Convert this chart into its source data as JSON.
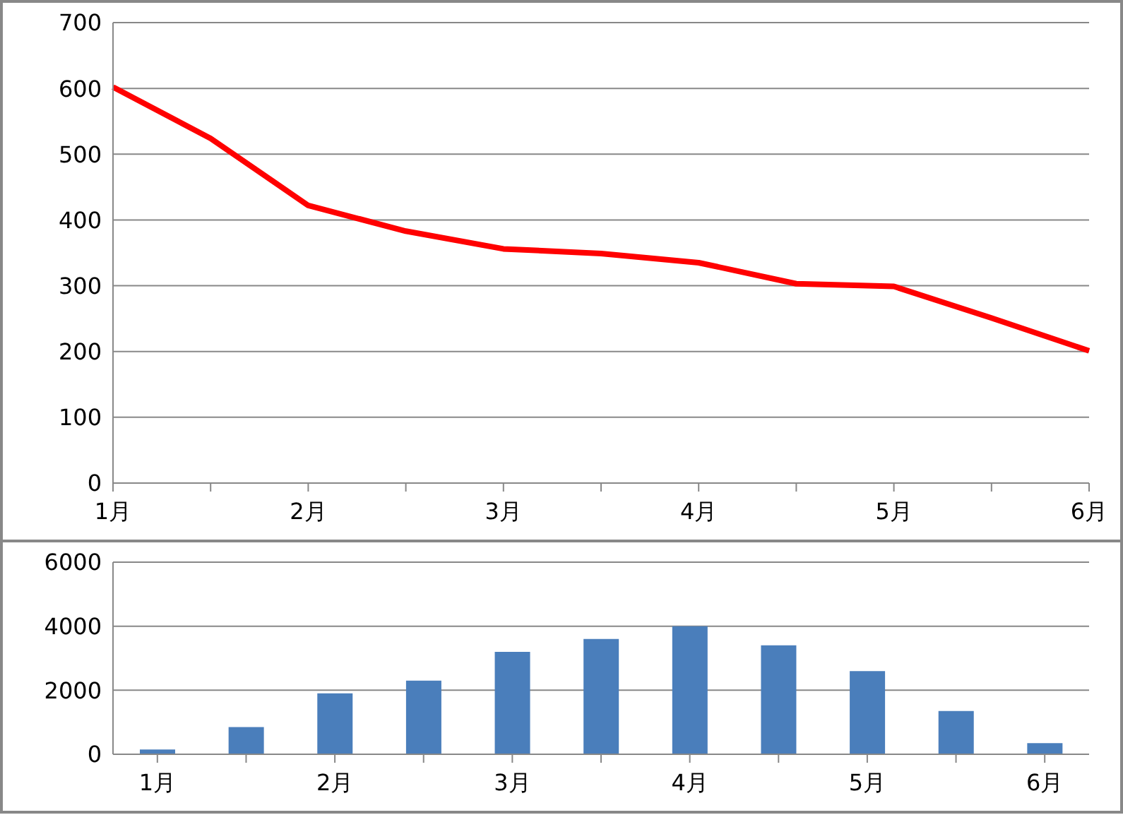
{
  "chart_data": [
    {
      "type": "line",
      "categories": [
        "1月",
        null,
        "2月",
        null,
        "3月",
        null,
        "4月",
        null,
        "5月",
        null,
        "6月"
      ],
      "series": [
        {
          "color": "#ff0000",
          "values": [
            602,
            524,
            422,
            383,
            356,
            349,
            335,
            303,
            299,
            251,
            201
          ]
        }
      ],
      "ylim": [
        0,
        700
      ],
      "yticks": [
        0,
        100,
        200,
        300,
        400,
        500,
        600,
        700
      ],
      "grid": "y",
      "legend": false,
      "marker": "none",
      "line_style": "solid"
    },
    {
      "type": "bar",
      "categories": [
        "1月",
        null,
        "2月",
        null,
        "3月",
        null,
        "4月",
        null,
        "5月",
        null,
        "6月"
      ],
      "series": [
        {
          "color": "#4a7ebb",
          "values": [
            150,
            850,
            1900,
            2300,
            3200,
            3600,
            4000,
            3400,
            2600,
            1350,
            350
          ]
        }
      ],
      "ylim": [
        0,
        6000
      ],
      "yticks": [
        0,
        2000,
        4000,
        6000
      ],
      "grid": "y",
      "legend": false
    }
  ]
}
